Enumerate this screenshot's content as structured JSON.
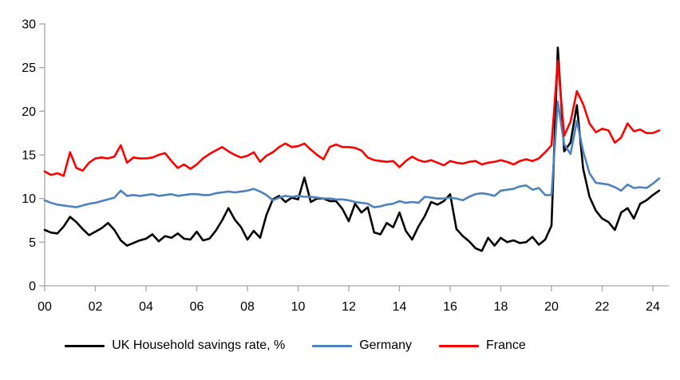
{
  "chart_data": {
    "type": "line",
    "title": "",
    "x_axis": {
      "start": "2000 Q1",
      "end": "2024 Q2",
      "frequency": "quarterly",
      "tick_labels": [
        "00",
        "02",
        "04",
        "06",
        "08",
        "10",
        "12",
        "14",
        "16",
        "18",
        "20",
        "22",
        "24"
      ]
    },
    "y_axis": {
      "min": 0,
      "max": 30,
      "tick_interval": 5,
      "tick_labels": [
        "0",
        "5",
        "10",
        "15",
        "20",
        "25",
        "30"
      ]
    },
    "grid": "off",
    "legend_position": "bottom",
    "axis_color": "#a6a6a6",
    "series": [
      {
        "name": "UK Household savings rate, %",
        "color": "#000000",
        "values": [
          6.4,
          6.1,
          6.0,
          6.8,
          7.9,
          7.3,
          6.5,
          5.8,
          6.2,
          6.6,
          7.2,
          6.4,
          5.2,
          4.6,
          4.9,
          5.2,
          5.4,
          5.9,
          5.1,
          5.7,
          5.5,
          6.0,
          5.4,
          5.3,
          6.2,
          5.2,
          5.4,
          6.3,
          7.5,
          8.9,
          7.6,
          6.7,
          5.3,
          6.3,
          5.5,
          8.1,
          9.9,
          10.3,
          9.6,
          10.1,
          9.9,
          12.4,
          9.6,
          10.0,
          10.0,
          9.7,
          9.7,
          8.8,
          7.4,
          9.4,
          8.4,
          9.0,
          6.1,
          5.9,
          7.2,
          6.7,
          8.4,
          6.3,
          5.3,
          6.8,
          8.0,
          9.6,
          9.3,
          9.7,
          10.5,
          6.5,
          5.7,
          5.1,
          4.3,
          4.0,
          5.5,
          4.6,
          5.5,
          5.0,
          5.2,
          4.9,
          5.0,
          5.6,
          4.7,
          5.3,
          6.9,
          27.3,
          15.4,
          16.4,
          20.7,
          13.4,
          10.2,
          8.6,
          7.7,
          7.3,
          6.4,
          8.4,
          8.9,
          7.7,
          9.4,
          9.8,
          10.4,
          10.9
        ]
      },
      {
        "name": "Germany",
        "color": "#4f81bd",
        "values": [
          9.8,
          9.5,
          9.3,
          9.2,
          9.1,
          9.0,
          9.2,
          9.4,
          9.5,
          9.7,
          9.9,
          10.1,
          10.9,
          10.3,
          10.4,
          10.3,
          10.4,
          10.5,
          10.3,
          10.4,
          10.5,
          10.3,
          10.4,
          10.5,
          10.5,
          10.4,
          10.4,
          10.6,
          10.7,
          10.8,
          10.7,
          10.8,
          10.9,
          11.1,
          10.8,
          10.4,
          9.8,
          10.1,
          10.3,
          10.2,
          10.3,
          10.2,
          10.2,
          10.1,
          10.0,
          10.0,
          9.9,
          9.9,
          9.8,
          9.6,
          9.5,
          9.4,
          9.0,
          9.1,
          9.3,
          9.4,
          9.7,
          9.5,
          9.6,
          9.5,
          10.2,
          10.1,
          10.0,
          10.0,
          10.1,
          10.0,
          9.8,
          10.2,
          10.5,
          10.6,
          10.5,
          10.3,
          10.9,
          11.0,
          11.1,
          11.4,
          11.5,
          11.0,
          11.2,
          10.4,
          10.4,
          21.1,
          16.2,
          15.1,
          18.9,
          15.4,
          12.9,
          11.8,
          11.7,
          11.6,
          11.3,
          10.9,
          11.6,
          11.2,
          11.3,
          11.2,
          11.7,
          12.3
        ]
      },
      {
        "name": "France",
        "color": "#ff0000",
        "values": [
          13.1,
          12.7,
          12.9,
          12.6,
          15.3,
          13.5,
          13.2,
          14.1,
          14.6,
          14.7,
          14.6,
          14.8,
          16.1,
          14.1,
          14.7,
          14.6,
          14.6,
          14.7,
          15.0,
          15.2,
          14.3,
          13.5,
          13.9,
          13.4,
          13.9,
          14.6,
          15.1,
          15.5,
          15.9,
          15.4,
          15.0,
          14.7,
          14.9,
          15.3,
          14.2,
          14.9,
          15.3,
          15.9,
          16.3,
          15.9,
          16.0,
          16.3,
          15.6,
          15.0,
          14.5,
          15.9,
          16.2,
          15.9,
          15.9,
          15.8,
          15.5,
          14.7,
          14.4,
          14.3,
          14.2,
          14.3,
          13.6,
          14.3,
          14.8,
          14.4,
          14.2,
          14.4,
          14.1,
          13.8,
          14.3,
          14.1,
          14.0,
          14.2,
          14.3,
          13.9,
          14.1,
          14.2,
          14.4,
          14.2,
          13.9,
          14.3,
          14.5,
          14.3,
          14.6,
          15.3,
          16.1,
          25.8,
          17.2,
          18.8,
          22.3,
          20.8,
          18.6,
          17.6,
          18.0,
          17.8,
          16.4,
          17.0,
          18.6,
          17.7,
          17.9,
          17.5,
          17.5,
          17.8
        ]
      }
    ]
  },
  "legend": {
    "items": [
      {
        "label": "UK Household savings rate, %"
      },
      {
        "label": "Germany"
      },
      {
        "label": "France"
      }
    ]
  }
}
